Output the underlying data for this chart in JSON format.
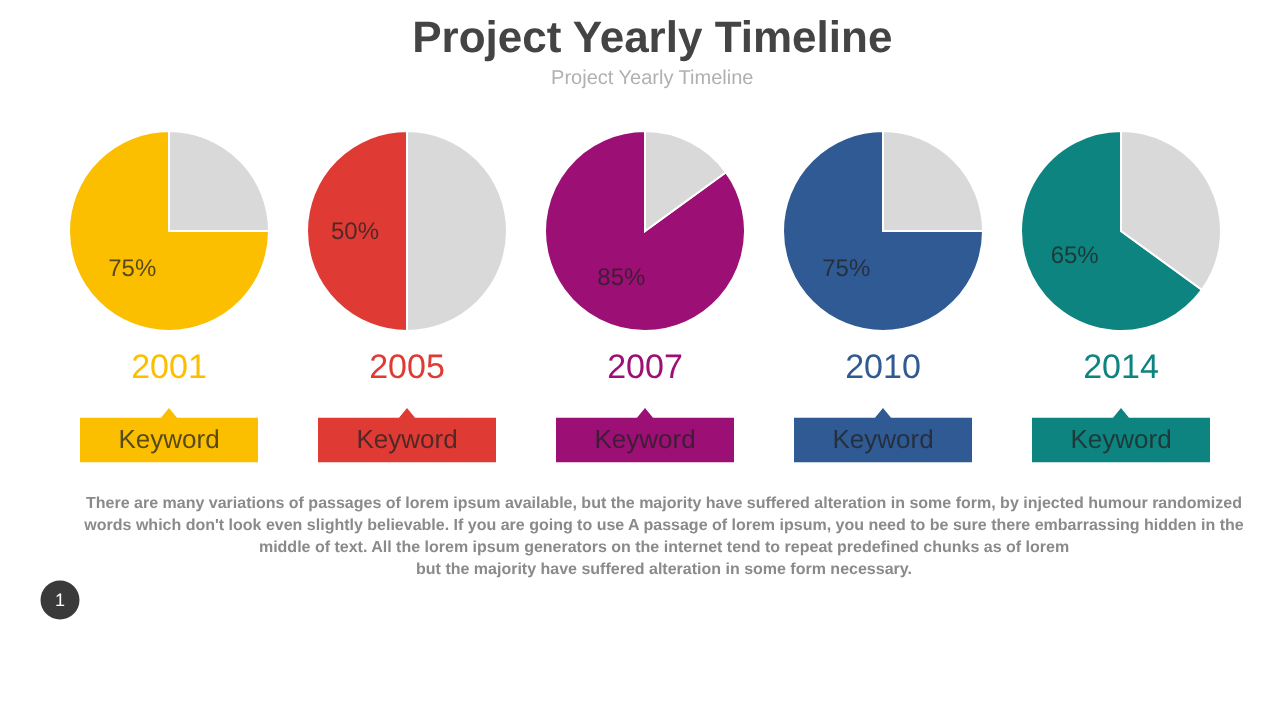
{
  "chart_data": [
    {
      "type": "other",
      "title": "Project Yearly Timeline",
      "subtitle": "Project Yearly Timeline",
      "annotations": [
        "There are many variations of passages of lorem ipsum available, but the majority have suffered alteration in some form, by injected humour randomized\nwords which don't look even slightly believable. If you are going to use A passage of lorem ipsum, you need to be sure there embarrassing hidden in the\nmiddle of text. All the lorem ipsum generators on the internet tend to repeat predefined chunks as of lorem\nbut the majority have suffered alteration in some form  necessary.",
        "1"
      ]
    },
    {
      "type": "pie",
      "title": "2001",
      "categories": [
        null,
        null
      ],
      "values": [
        75,
        25
      ],
      "colors": [
        "#fbbf00",
        "#d9d9d9"
      ],
      "value_labels": [
        "75%",
        null
      ],
      "annotations": [
        "Keyword"
      ]
    },
    {
      "type": "pie",
      "title": "2005",
      "categories": [
        null,
        null
      ],
      "values": [
        50,
        50
      ],
      "colors": [
        "#e03a34",
        "#d9d9d9"
      ],
      "value_labels": [
        "50%",
        null
      ],
      "annotations": [
        "Keyword"
      ]
    },
    {
      "type": "pie",
      "title": "2007",
      "categories": [
        null,
        null
      ],
      "values": [
        85,
        15
      ],
      "colors": [
        "#9c0f74",
        "#d9d9d9"
      ],
      "value_labels": [
        "85%",
        null
      ],
      "annotations": [
        "Keyword"
      ]
    },
    {
      "type": "pie",
      "title": "2010",
      "categories": [
        null,
        null
      ],
      "values": [
        75,
        25
      ],
      "colors": [
        "#2f5a94",
        "#d9d9d9"
      ],
      "value_labels": [
        "75%",
        null
      ],
      "annotations": [
        "Keyword"
      ]
    },
    {
      "type": "pie",
      "title": "2014",
      "categories": [
        null,
        null
      ],
      "values": [
        65,
        35
      ],
      "colors": [
        "#0d8480",
        "#d9d9d9"
      ],
      "value_labels": [
        "65%",
        null
      ],
      "annotations": [
        "Keyword"
      ]
    }
  ]
}
